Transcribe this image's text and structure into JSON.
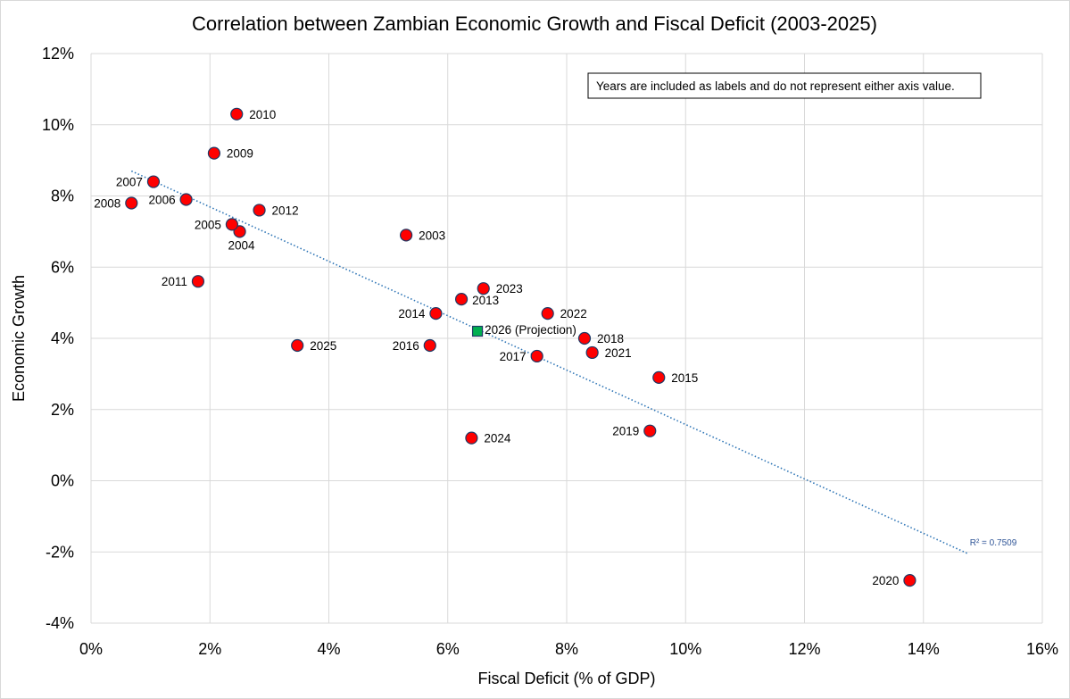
{
  "chart_data": {
    "type": "scatter",
    "title": "Correlation between Zambian Economic Growth and Fiscal Deficit (2003-2025)",
    "xlabel": "Fiscal Deficit (% of GDP)",
    "ylabel": "Economic Growth",
    "xlim": [
      0,
      16
    ],
    "ylim": [
      -4,
      12
    ],
    "x_ticks": [
      "0%",
      "2%",
      "4%",
      "6%",
      "8%",
      "10%",
      "12%",
      "14%",
      "16%"
    ],
    "y_ticks": [
      "12%",
      "10%",
      "8%",
      "6%",
      "4%",
      "2%",
      "0%",
      "-2%",
      "-4%"
    ],
    "x_tick_values": [
      0,
      2,
      4,
      6,
      8,
      10,
      12,
      14,
      16
    ],
    "y_tick_values": [
      12,
      10,
      8,
      6,
      4,
      2,
      0,
      -2,
      -4
    ],
    "grid": true,
    "annotation": "Years are included as labels and do not represent either axis value.",
    "points": [
      {
        "label": "2003",
        "x": 5.3,
        "y": 6.9,
        "label_side": "right"
      },
      {
        "label": "2004",
        "x": 2.5,
        "y": 7.0,
        "label_side": "below"
      },
      {
        "label": "2005",
        "x": 2.37,
        "y": 7.2,
        "label_side": "left"
      },
      {
        "label": "2006",
        "x": 1.6,
        "y": 7.9,
        "label_side": "left"
      },
      {
        "label": "2007",
        "x": 1.05,
        "y": 8.4,
        "label_side": "left"
      },
      {
        "label": "2008",
        "x": 0.68,
        "y": 7.8,
        "label_side": "left"
      },
      {
        "label": "2009",
        "x": 2.07,
        "y": 9.2,
        "label_side": "right"
      },
      {
        "label": "2010",
        "x": 2.45,
        "y": 10.3,
        "label_side": "right"
      },
      {
        "label": "2011",
        "x": 1.8,
        "y": 5.6,
        "label_side": "left"
      },
      {
        "label": "2012",
        "x": 2.83,
        "y": 7.6,
        "label_side": "right"
      },
      {
        "label": "2013",
        "x": 6.23,
        "y": 5.1,
        "label_side": "below-right"
      },
      {
        "label": "2014",
        "x": 5.8,
        "y": 4.7,
        "label_side": "left"
      },
      {
        "label": "2015",
        "x": 9.55,
        "y": 2.9,
        "label_side": "right"
      },
      {
        "label": "2016",
        "x": 5.7,
        "y": 3.8,
        "label_side": "left"
      },
      {
        "label": "2017",
        "x": 7.5,
        "y": 3.5,
        "label_side": "left"
      },
      {
        "label": "2018",
        "x": 8.3,
        "y": 4.0,
        "label_side": "right"
      },
      {
        "label": "2019",
        "x": 9.4,
        "y": 1.4,
        "label_side": "left"
      },
      {
        "label": "2020",
        "x": 13.77,
        "y": -2.8,
        "label_side": "left"
      },
      {
        "label": "2021",
        "x": 8.43,
        "y": 3.6,
        "label_side": "right"
      },
      {
        "label": "2022",
        "x": 7.68,
        "y": 4.7,
        "label_side": "right"
      },
      {
        "label": "2023",
        "x": 6.6,
        "y": 5.4,
        "label_side": "right"
      },
      {
        "label": "2024",
        "x": 6.4,
        "y": 1.2,
        "label_side": "right"
      },
      {
        "label": "2025",
        "x": 3.47,
        "y": 3.8,
        "label_side": "right"
      }
    ],
    "projection": {
      "label": "2026 (Projection)",
      "x": 6.5,
      "y": 4.2,
      "label_side": "right"
    },
    "trendline": {
      "type": "linear",
      "x_start": 0.68,
      "y_start": 8.7,
      "x_end": 14.75,
      "y_end": -2.05,
      "r2_label": "R² = 0.7509"
    },
    "colors": {
      "point_fill": "#ff0000",
      "point_stroke": "#1f3864",
      "projection_fill": "#00b050",
      "projection_stroke": "#1f3864",
      "trendline": "#2e75b6",
      "grid": "#d9d9d9"
    }
  }
}
